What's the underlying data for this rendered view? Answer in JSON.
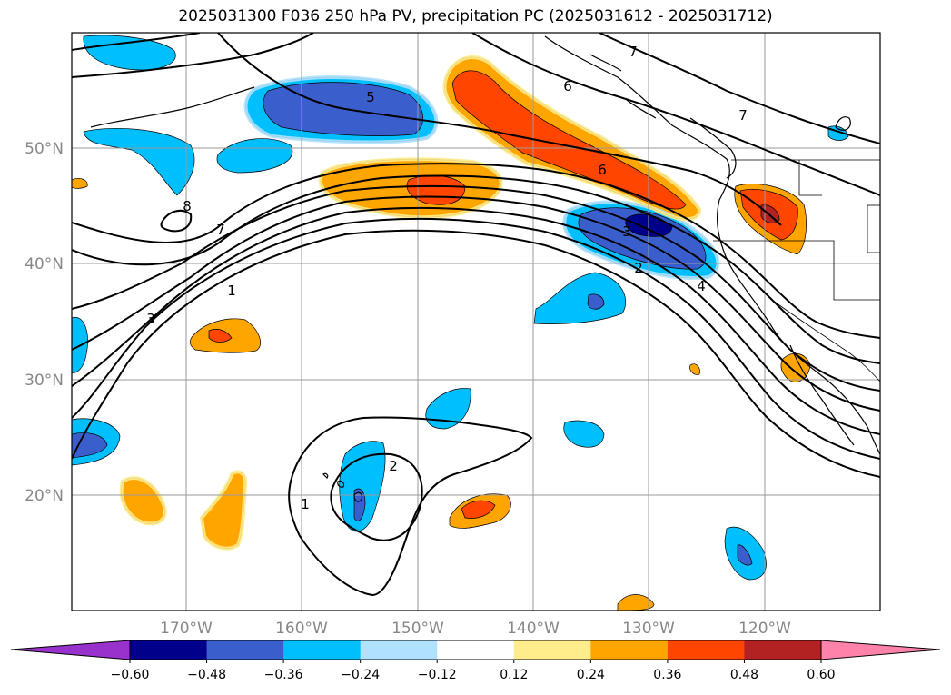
{
  "title": "2025031300 F036 250 hPa PV, precipitation PC (2025031612 - 2025031712)",
  "map": {
    "lat_labels": [
      "50°N",
      "40°N",
      "30°N",
      "20°N"
    ],
    "lon_labels": [
      "170°W",
      "160°W",
      "150°W",
      "140°W",
      "130°W",
      "120°W"
    ],
    "contour_labels": [
      "7",
      "6",
      "5",
      "6",
      "7",
      "8",
      "7",
      "1",
      "3",
      "3",
      "2",
      "4",
      "2",
      "1"
    ]
  },
  "colorbar": {
    "ticks": [
      "−0.60",
      "−0.48",
      "−0.36",
      "−0.24",
      "−0.12",
      "0.12",
      "0.24",
      "0.36",
      "0.48",
      "0.60"
    ],
    "colors": [
      "#9932cc",
      "#00008b",
      "#3a5fcd",
      "#00bfff",
      "#b0e2ff",
      "#ffffff",
      "#ffec8b",
      "#ffa500",
      "#ff4500",
      "#b22222",
      "#ff82ab"
    ]
  }
}
